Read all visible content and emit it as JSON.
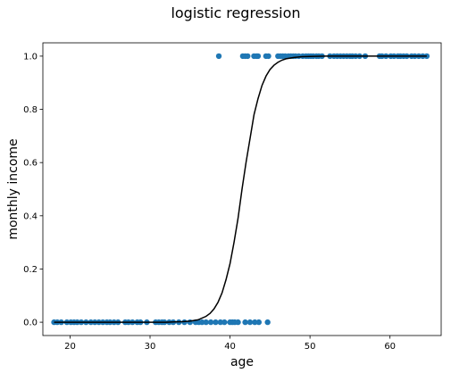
{
  "chart_data": {
    "type": "scatter",
    "title": "logistic regression",
    "xlabel": "age",
    "ylabel": "monthly income",
    "xlim": [
      16.6,
      66.4
    ],
    "ylim": [
      -0.05,
      1.05
    ],
    "xticks": [
      20,
      30,
      40,
      50,
      60
    ],
    "yticks": [
      0.0,
      0.2,
      0.4,
      0.6,
      0.8,
      1.0
    ],
    "xtick_labels": [
      "20",
      "30",
      "40",
      "50",
      "60"
    ],
    "ytick_labels": [
      "0.0",
      "0.2",
      "0.4",
      "0.6",
      "0.8",
      "1.0"
    ],
    "grid": false,
    "colors": {
      "points": "#1f77b4",
      "curve": "#000000"
    },
    "series": [
      {
        "kind": "scatter",
        "x": [
          18.0,
          18.4,
          18.9,
          19.6,
          20.1,
          20.5,
          20.9,
          21.4,
          22.0,
          22.6,
          23.1,
          23.6,
          24.1,
          24.6,
          25.0,
          25.5,
          26.0,
          26.9,
          27.3,
          27.8,
          28.4,
          28.8,
          29.6,
          30.7,
          31.1,
          31.5,
          31.8,
          32.4,
          32.9,
          33.6,
          34.3,
          35.0,
          35.7,
          36.1,
          36.5,
          37.0,
          37.6,
          38.2,
          38.8,
          39.3,
          40.0,
          40.3,
          40.6,
          41.0,
          41.9,
          42.5,
          43.1,
          43.6,
          44.7
        ],
        "y": [
          0,
          0,
          0,
          0,
          0,
          0,
          0,
          0,
          0,
          0,
          0,
          0,
          0,
          0,
          0,
          0,
          0,
          0,
          0,
          0,
          0,
          0,
          0,
          0,
          0,
          0,
          0,
          0,
          0,
          0,
          0,
          0,
          0,
          0,
          0,
          0,
          0,
          0,
          0,
          0,
          0,
          0,
          0,
          0,
          0,
          0,
          0,
          0,
          0
        ]
      },
      {
        "kind": "scatter",
        "x": [
          38.6,
          41.6,
          41.9,
          42.2,
          43.0,
          43.3,
          43.5,
          44.5,
          44.8,
          46.0,
          46.3,
          46.6,
          46.9,
          47.3,
          47.6,
          47.9,
          48.2,
          48.6,
          49.1,
          49.5,
          49.8,
          50.1,
          50.4,
          50.8,
          51.1,
          51.5,
          52.5,
          53.0,
          53.4,
          53.8,
          54.2,
          54.6,
          55.0,
          55.3,
          55.7,
          56.2,
          56.9,
          58.7,
          59.0,
          59.5,
          60.1,
          60.5,
          61.0,
          61.3,
          61.7,
          62.1,
          62.7,
          63.1,
          63.6,
          64.1,
          64.6
        ],
        "y": [
          1,
          1,
          1,
          1,
          1,
          1,
          1,
          1,
          1,
          1,
          1,
          1,
          1,
          1,
          1,
          1,
          1,
          1,
          1,
          1,
          1,
          1,
          1,
          1,
          1,
          1,
          1,
          1,
          1,
          1,
          1,
          1,
          1,
          1,
          1,
          1,
          1,
          1,
          1,
          1,
          1,
          1,
          1,
          1,
          1,
          1,
          1,
          1,
          1,
          1,
          1
        ]
      },
      {
        "kind": "line",
        "x": [
          18.0,
          20.0,
          22.0,
          24.0,
          26.0,
          28.0,
          30.0,
          32.0,
          33.0,
          34.0,
          35.0,
          36.0,
          37.0,
          37.5,
          38.0,
          38.5,
          39.0,
          39.5,
          40.0,
          40.5,
          41.0,
          41.5,
          42.0,
          42.5,
          43.0,
          43.5,
          44.0,
          44.5,
          45.0,
          45.5,
          46.0,
          46.5,
          47.0,
          48.0,
          49.0,
          50.0,
          52.0,
          55.0,
          58.0,
          61.0,
          64.6
        ],
        "y": [
          0.0,
          0.0,
          0.0,
          0.0,
          0.0,
          0.0,
          0.0,
          0.0,
          0.001,
          0.002,
          0.004,
          0.009,
          0.022,
          0.033,
          0.05,
          0.075,
          0.11,
          0.16,
          0.22,
          0.3,
          0.39,
          0.5,
          0.6,
          0.69,
          0.78,
          0.84,
          0.89,
          0.925,
          0.95,
          0.966,
          0.977,
          0.985,
          0.99,
          0.995,
          0.998,
          0.999,
          1.0,
          1.0,
          1.0,
          1.0,
          1.0
        ]
      }
    ]
  }
}
